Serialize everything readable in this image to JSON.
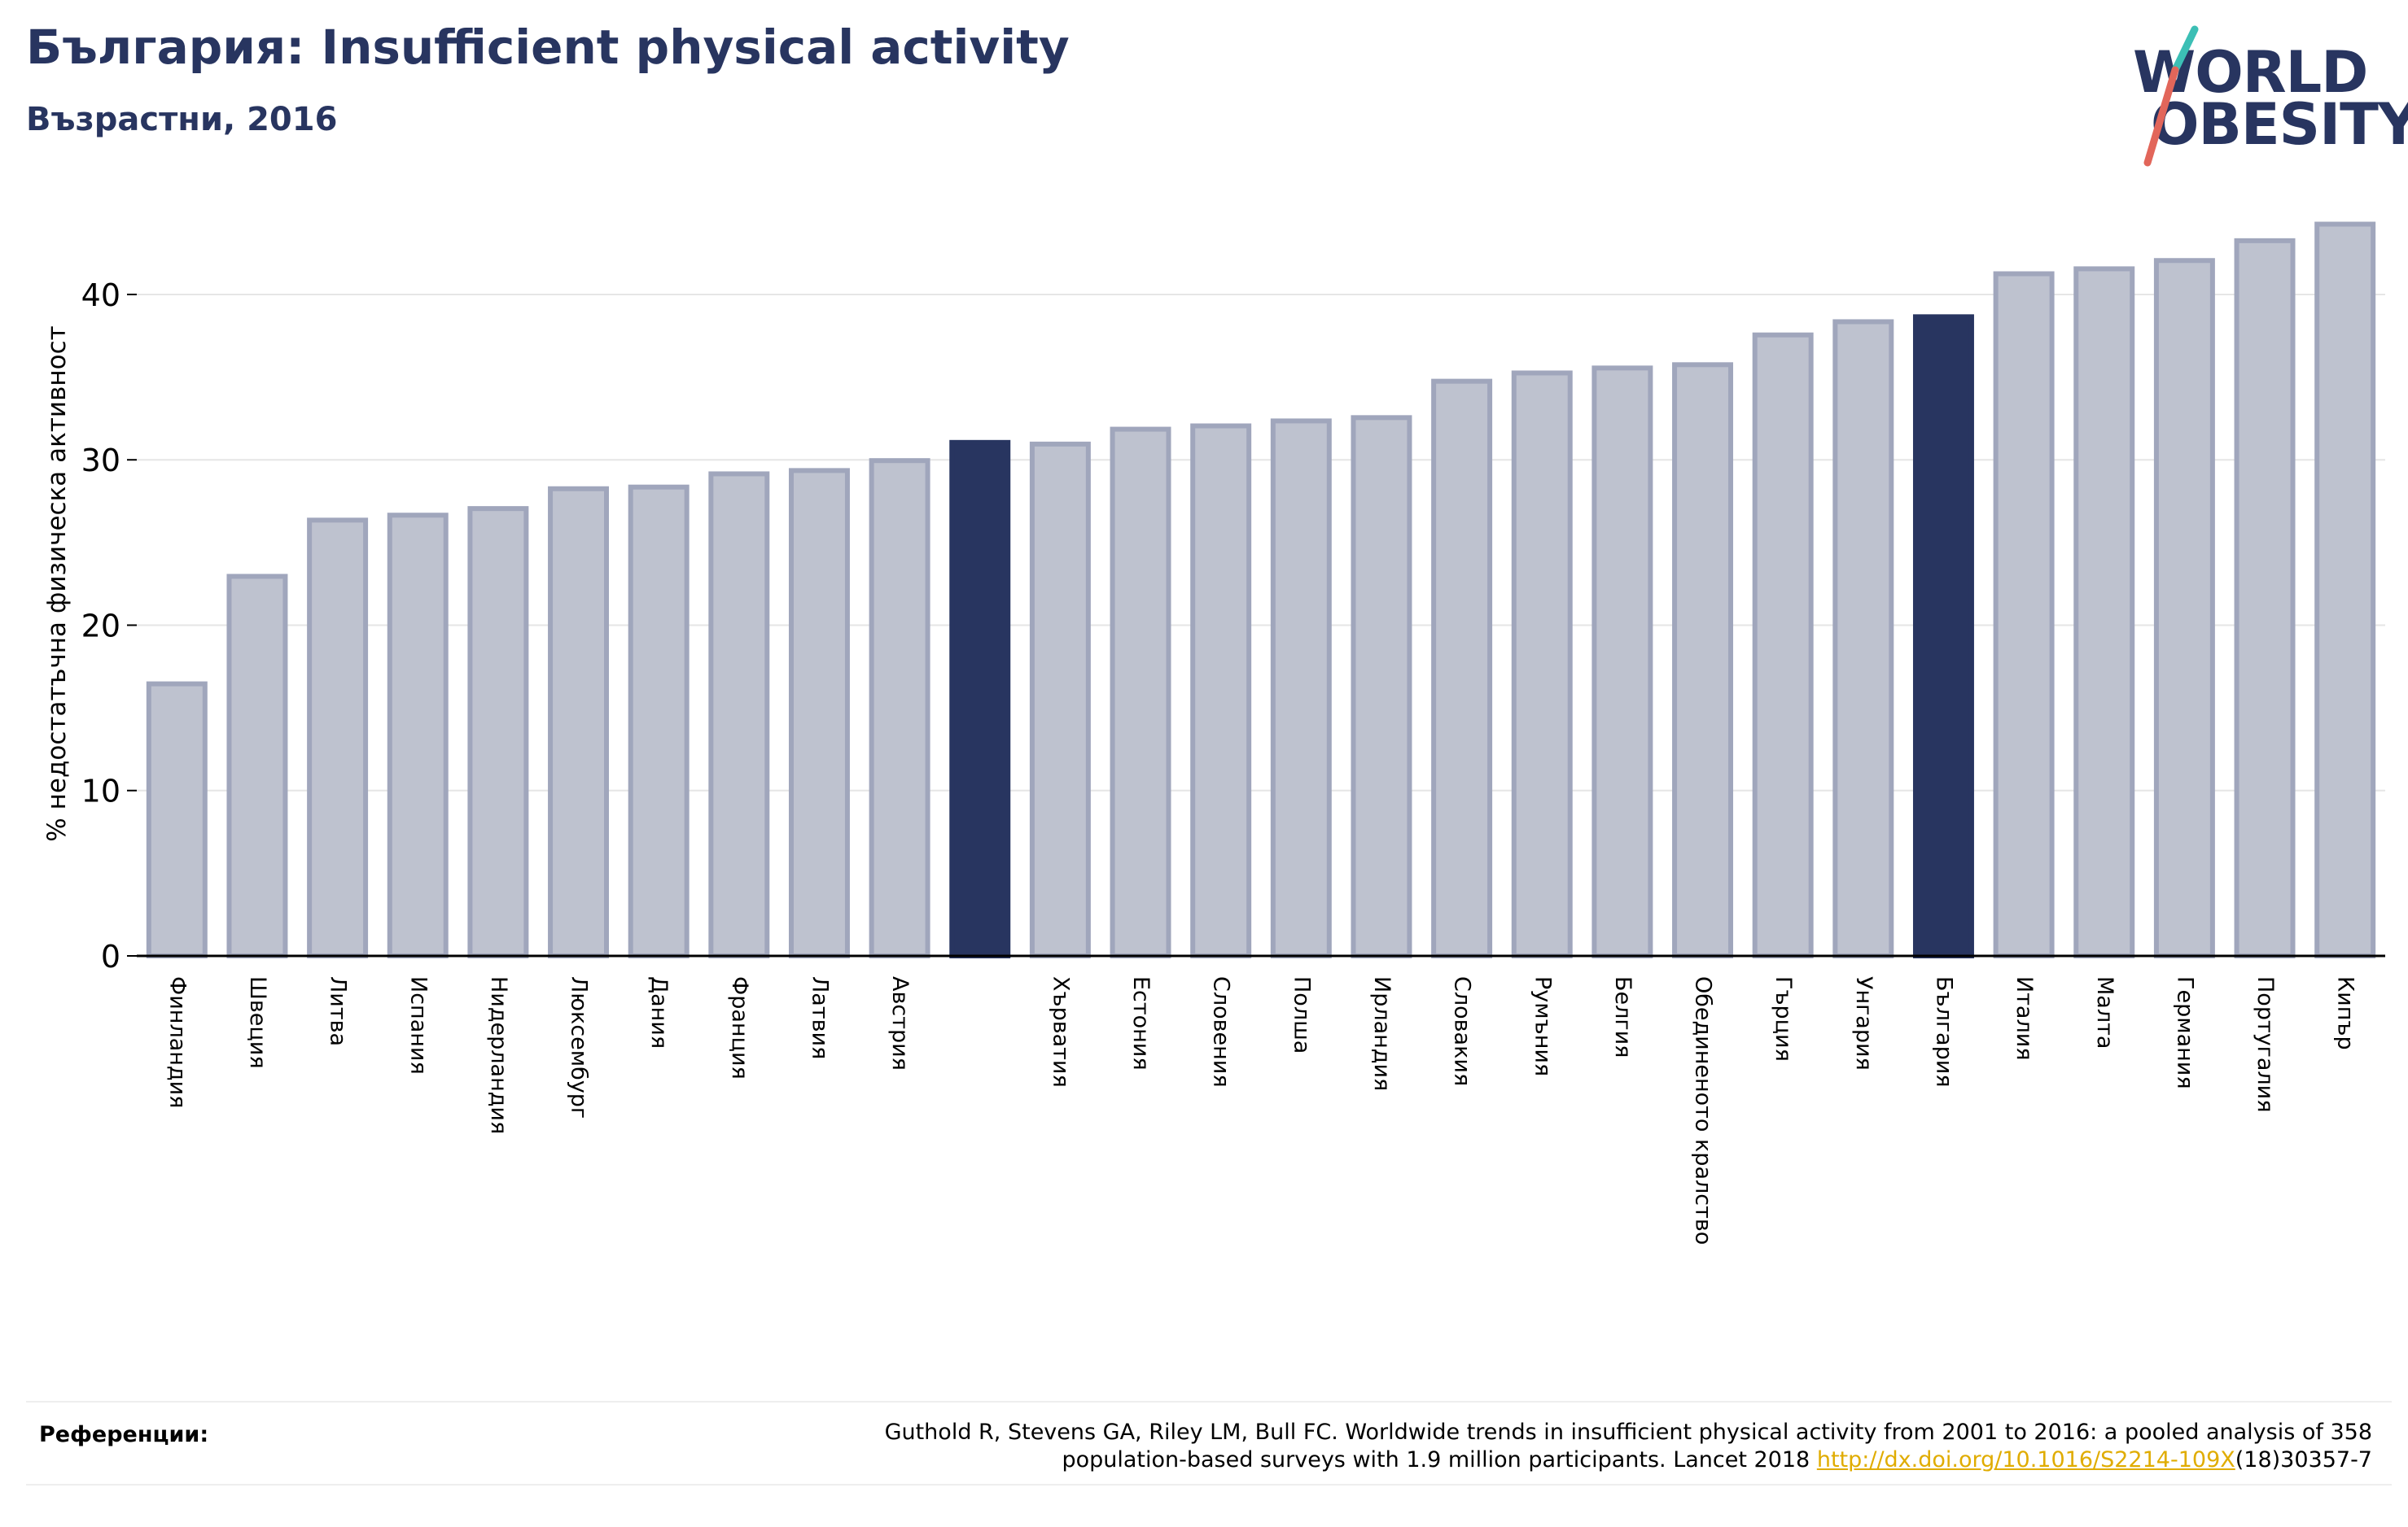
{
  "header": {
    "title": "България: Insufficient physical activity",
    "subtitle": "Възрастни, 2016"
  },
  "logo": {
    "line1": "WORLD",
    "line2": "OBESITY",
    "slash_colors": [
      "#3cbfb5",
      "#e2665a"
    ]
  },
  "colors": {
    "highlight": "#283560",
    "bar_fill": "#bec2cf",
    "bar_stroke": "#a0a6bc",
    "axis": "#000000",
    "grid": "#e6e6e6"
  },
  "chart_data": {
    "type": "bar",
    "ylabel": "% недостатъчна физическа активност",
    "ylim": [
      0,
      46
    ],
    "yticks": [
      0,
      10,
      20,
      30,
      40
    ],
    "grid": true,
    "categories": [
      "Финландия",
      "Швеция",
      "Литва",
      "Испания",
      "Нидерландия",
      "Люксембург",
      "Дания",
      "Франция",
      "Латвия",
      "Австрия",
      "",
      "Хърватия",
      "Естония",
      "Словения",
      "Полша",
      "Ирландия",
      "Словакия",
      "Румъния",
      "Белгия",
      "Обединеното кралство",
      "Гърция",
      "Унгария",
      "България",
      "Италия",
      "Малта",
      "Германия",
      "Португалия",
      "Кипър"
    ],
    "values": [
      16.6,
      23.1,
      26.5,
      26.8,
      27.2,
      28.4,
      28.5,
      29.3,
      29.5,
      30.1,
      31.2,
      31.1,
      32.0,
      32.2,
      32.5,
      32.7,
      34.9,
      35.4,
      35.7,
      35.9,
      37.7,
      38.5,
      38.8,
      41.4,
      41.7,
      42.2,
      43.4,
      44.4
    ],
    "highlighted": [
      10,
      22
    ]
  },
  "references": {
    "label": "Референции:",
    "line1": "Guthold R, Stevens GA, Riley LM, Bull FC. Worldwide trends in insufficient physical activity from 2001 to 2016: a pooled analysis of 358",
    "line2_prefix": "population-based surveys with 1.9 million participants. Lancet 2018 ",
    "link": "http://dx.doi.org/10.1016/S2214-109X",
    "line2_suffix": "(18)30357-7"
  }
}
